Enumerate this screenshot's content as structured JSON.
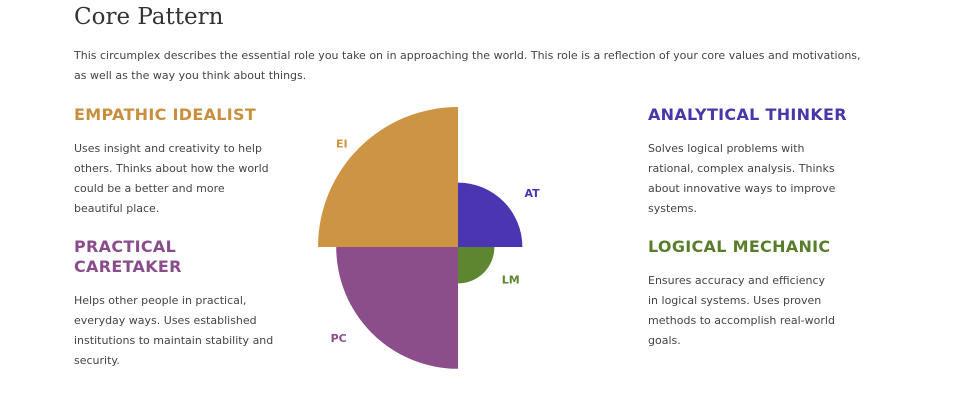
{
  "page": {
    "title": "Core Pattern",
    "intro": "This circumplex describes the essential role you take on in approaching the world. This role is a reflection of your core values and motivations, as well as the way you think about things."
  },
  "patterns": {
    "ei": {
      "heading": "EMPATHIC IDEALIST",
      "description": "Uses insight and creativity to help others. Thinks about how the world could be a better and more beautiful place.",
      "color": "#c98f3f"
    },
    "pc": {
      "heading": "PRACTICAL CARETAKER",
      "description": "Helps other people in practical, everyday ways. Uses established institutions to maintain stability and security.",
      "color": "#8a4d8c"
    },
    "at": {
      "heading": "ANALYTICAL THINKER",
      "description": "Solves logical problems with rational, complex analysis. Thinks about innovative ways to improve systems.",
      "color": "#4a36a8"
    },
    "lm": {
      "heading": "LOGICAL MECHANIC",
      "description": "Ensures accuracy and efficiency in logical systems. Uses proven methods to accomplish real-world goals.",
      "color": "#5a7d2c"
    }
  },
  "chart_data": {
    "type": "polar-area",
    "title": "",
    "max_value": 100,
    "segments": [
      {
        "label": "EI",
        "quadrant": "top-left",
        "value": 100,
        "color": "#cd9443"
      },
      {
        "label": "AT",
        "quadrant": "top-right",
        "value": 46,
        "color": "#4c35b0"
      },
      {
        "label": "LM",
        "quadrant": "bottom-right",
        "value": 26,
        "color": "#5e8530"
      },
      {
        "label": "PC",
        "quadrant": "bottom-left",
        "value": 87,
        "color": "#8c4e8b"
      }
    ]
  }
}
